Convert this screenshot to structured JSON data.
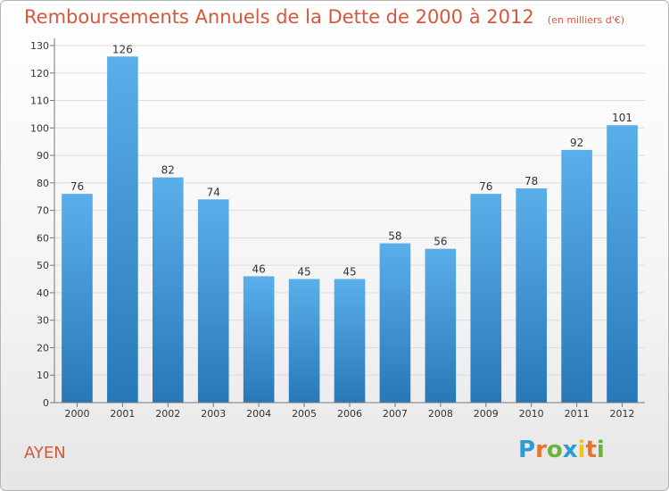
{
  "chart_data": {
    "type": "bar",
    "title": "Remboursements Annuels de la Dette de 2000 à 2012",
    "subtitle": "(en milliers d'€)",
    "categories": [
      "2000",
      "2001",
      "2002",
      "2003",
      "2004",
      "2005",
      "2006",
      "2007",
      "2008",
      "2009",
      "2010",
      "2011",
      "2012"
    ],
    "values": [
      76,
      126,
      82,
      74,
      46,
      45,
      45,
      58,
      56,
      76,
      78,
      92,
      101
    ],
    "ylim": [
      0,
      130
    ],
    "yticks": [
      0,
      10,
      20,
      30,
      40,
      50,
      60,
      70,
      80,
      90,
      100,
      110,
      120,
      130
    ],
    "grid": true,
    "bar_color_top": "#5aafea",
    "bar_color_bottom": "#2878b8"
  },
  "footer": {
    "commune": "AYEN",
    "logo_letters": [
      "P",
      "r",
      "o",
      "x",
      "i",
      "t",
      "i"
    ],
    "logo_colors": [
      "#2e9ad8",
      "#e8732a",
      "#6cb33f",
      "#2e9ad8",
      "#f0c419",
      "#e8732a",
      "#6cb33f"
    ]
  }
}
